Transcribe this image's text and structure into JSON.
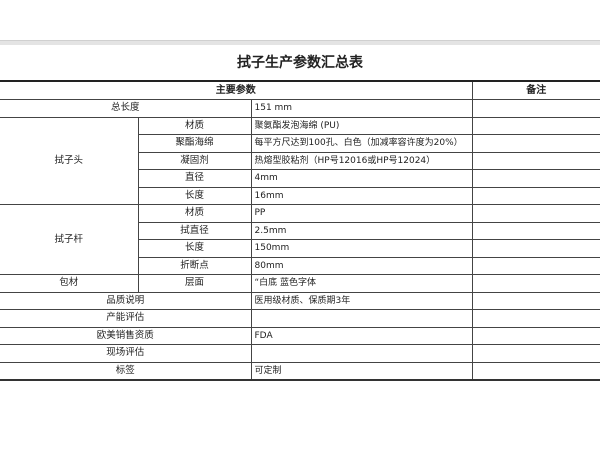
{
  "title": "拭子生产参数汇总表",
  "header": {
    "main": "主要参数",
    "notes": "备注"
  },
  "total_length": {
    "label": "总长度",
    "value": "151 mm"
  },
  "swab_head": {
    "label": "拭子头",
    "rows": [
      {
        "param": "材质",
        "value": "聚氨酯发泡海绵 (PU)"
      },
      {
        "param": "聚酯海绵",
        "value": "每平方尺达到100孔、白色（加减率容许度为20%）"
      },
      {
        "param": "凝固剂",
        "value": "热熔型胶粘剂（HP号12016或HP号12024）"
      },
      {
        "param": "直径",
        "value": "4mm"
      },
      {
        "param": "长度",
        "value": "16mm"
      }
    ]
  },
  "swab_stick": {
    "label": "拭子杆",
    "rows": [
      {
        "param": "材质",
        "value": "PP"
      },
      {
        "param": "拭直径",
        "value": "2.5mm"
      },
      {
        "param": "长度",
        "value": "150mm"
      },
      {
        "param": "折断点",
        "value": "80mm"
      }
    ]
  },
  "packaging": {
    "label": "包材",
    "param": "层面",
    "value": "“白底 蓝色字体"
  },
  "other_rows": [
    {
      "label": "品质说明",
      "value": "医用级材质、保质期3年"
    },
    {
      "label": "产能评估",
      "value": ""
    },
    {
      "label": "欧美销售资质",
      "value": "FDA"
    },
    {
      "label": "现场评估",
      "value": ""
    },
    {
      "label": "标签",
      "value": "可定制"
    }
  ]
}
